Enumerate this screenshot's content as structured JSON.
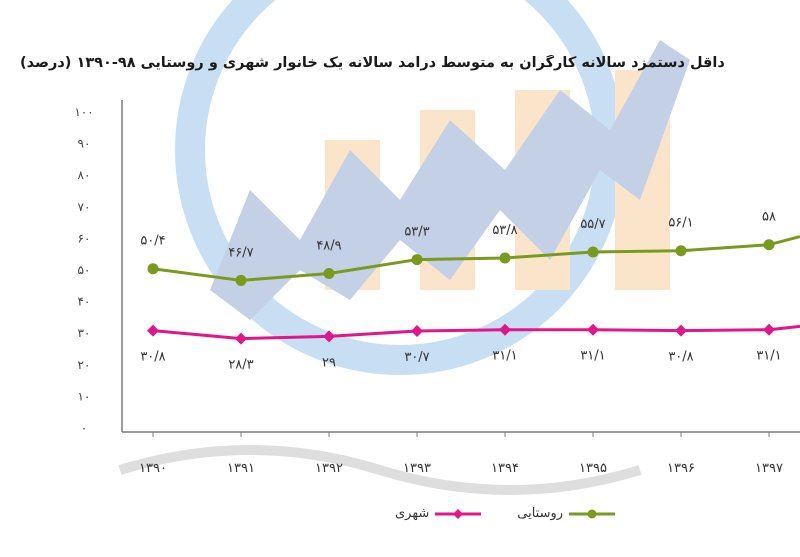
{
  "chart_data": {
    "type": "line",
    "title": "داقل دستمزد سالانه کارگران به متوسط درآمد سالانه یک خانوار شهری و روستایی ۹۸-۱۳۹۰  (درصد)",
    "categories": [
      "۱۳۹۰",
      "۱۳۹۱",
      "۱۳۹۲",
      "۱۳۹۳",
      "۱۳۹۴",
      "۱۳۹۵",
      "۱۳۹۶",
      "۱۳۹۷"
    ],
    "y_ticks": [
      "۰",
      "۱۰",
      "۲۰",
      "۳۰",
      "۴۰",
      "۵۰",
      "۶۰",
      "۷۰",
      "۸۰",
      "۹۰",
      "۱۰۰"
    ],
    "ylim": [
      0,
      100
    ],
    "series": [
      {
        "name": "روستایی",
        "color": "#7a9a1d",
        "values": [
          50.4,
          46.7,
          48.9,
          53.3,
          53.8,
          55.7,
          56.1,
          58
        ],
        "labels": [
          "۵۰/۴",
          "۴۶/۷",
          "۴۸/۹",
          "۵۳/۳",
          "۵۳/۸",
          "۵۵/۷",
          "۵۶/۱",
          "۵۸"
        ],
        "label_position": "above"
      },
      {
        "name": "شهری",
        "color": "#e0168a",
        "values": [
          30.8,
          28.3,
          29,
          30.7,
          31.1,
          31.1,
          30.8,
          31.1
        ],
        "labels": [
          "۳۰/۸",
          "۲۸/۳",
          "۲۹",
          "۳۰/۷",
          "۳۱/۱",
          "۳۱/۱",
          "۳۰/۸",
          "۳۱/۱"
        ],
        "label_position": "below"
      }
    ],
    "grid": false,
    "legend_position": "bottom"
  }
}
